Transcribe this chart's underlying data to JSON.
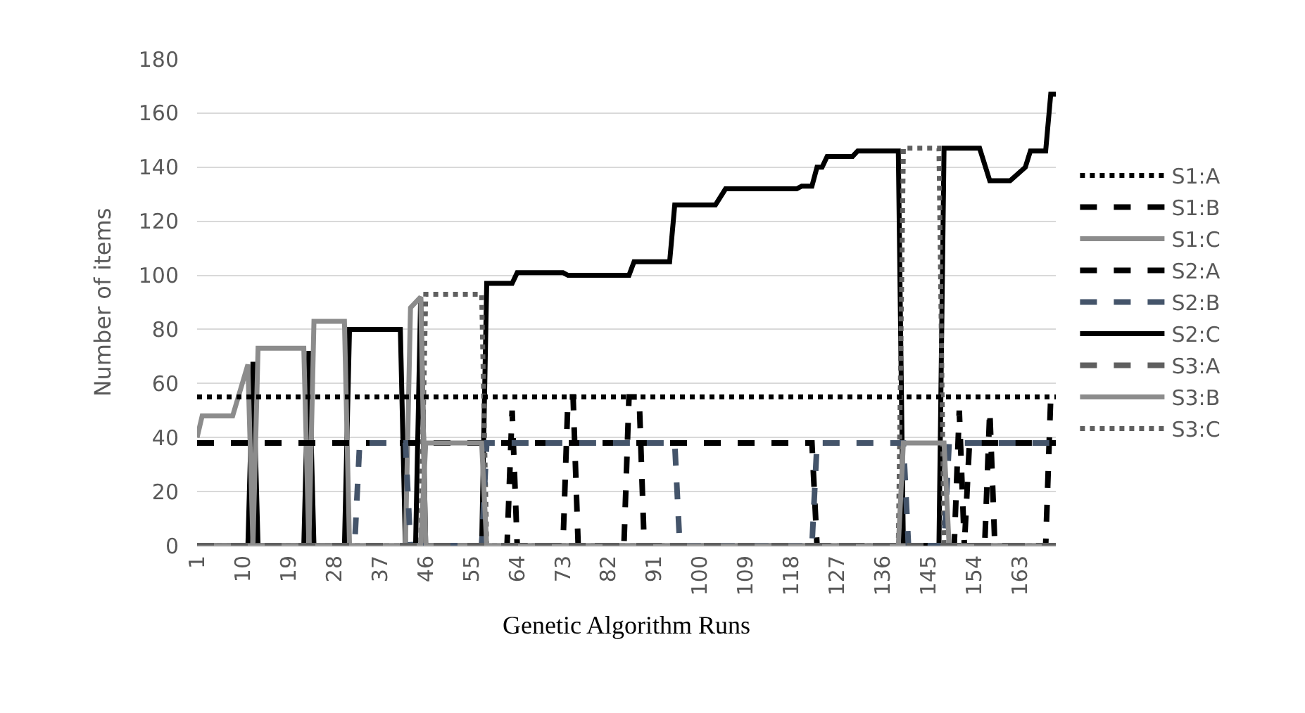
{
  "chart_data": {
    "type": "line",
    "xlabel": "Genetic Algorithm Runs",
    "ylabel": "Number of items",
    "xlim": [
      1,
      170
    ],
    "xticks": [
      1,
      10,
      19,
      28,
      37,
      46,
      55,
      64,
      73,
      82,
      91,
      100,
      109,
      118,
      127,
      136,
      145,
      154,
      163
    ],
    "ylim": [
      0,
      180
    ],
    "yticks": [
      0,
      20,
      40,
      60,
      80,
      100,
      120,
      140,
      160,
      180
    ],
    "grid": "y",
    "legend": "right",
    "marker": "none",
    "series": [
      {
        "name": "S1:A",
        "color": "#000000",
        "line_style": "dotted",
        "x": [
          1,
          170
        ],
        "values": [
          55,
          55
        ]
      },
      {
        "name": "S1:B",
        "color": "#000000",
        "line_style": "dashed",
        "x": [
          1,
          122,
          123,
          152,
          153,
          170
        ],
        "values": [
          38,
          38,
          0,
          0,
          38,
          38
        ]
      },
      {
        "name": "S1:C",
        "color": "#8c8c8c",
        "line_style": "solid",
        "x": [
          1,
          2,
          8,
          11,
          12,
          13,
          22,
          23,
          24,
          30,
          31,
          42,
          43,
          45,
          46,
          170
        ],
        "values": [
          40,
          48,
          48,
          67,
          0,
          73,
          73,
          0,
          83,
          83,
          0,
          0,
          88,
          92,
          0,
          0
        ]
      },
      {
        "name": "S2:A",
        "color": "#000000",
        "line_style": "dashed",
        "x": [
          1,
          62,
          63,
          64,
          73,
          74,
          75,
          76,
          85,
          86,
          88,
          89,
          150,
          151,
          152,
          156,
          157,
          158,
          168,
          169,
          170
        ],
        "values": [
          0,
          0,
          50,
          0,
          0,
          55,
          55,
          0,
          0,
          55,
          55,
          0,
          0,
          50,
          0,
          0,
          50,
          0,
          0,
          55,
          55
        ]
      },
      {
        "name": "S2:B",
        "color": "#44546a",
        "line_style": "dashed",
        "x": [
          1,
          32,
          33,
          42,
          43,
          57,
          58,
          95,
          96,
          122,
          123,
          140,
          141,
          148,
          149,
          170
        ],
        "values": [
          0,
          0,
          38,
          38,
          0,
          0,
          38,
          38,
          0,
          0,
          38,
          38,
          0,
          0,
          38,
          38
        ]
      },
      {
        "name": "S2:C",
        "color": "#000000",
        "line_style": "solid",
        "x": [
          1,
          11,
          12,
          13,
          22,
          23,
          24,
          30,
          31,
          41,
          42,
          44,
          45,
          46,
          57,
          58,
          63,
          64,
          73,
          74,
          86,
          87,
          94,
          95,
          103,
          105,
          119,
          120,
          122,
          123,
          124,
          125,
          130,
          131,
          139,
          140,
          147,
          148,
          155,
          157,
          161,
          164,
          165,
          168,
          169,
          170
        ],
        "values": [
          0,
          0,
          68,
          0,
          0,
          72,
          0,
          0,
          80,
          80,
          0,
          0,
          92,
          0,
          0,
          97,
          97,
          101,
          101,
          100,
          100,
          105,
          105,
          126,
          126,
          132,
          132,
          133,
          133,
          140,
          140,
          144,
          144,
          146,
          146,
          0,
          0,
          147,
          147,
          135,
          135,
          140,
          146,
          146,
          167,
          167
        ]
      },
      {
        "name": "S3:A",
        "color": "#5f5f5f",
        "line_style": "dashed",
        "x": [
          1,
          170
        ],
        "values": [
          0,
          0
        ]
      },
      {
        "name": "S3:B",
        "color": "#8c8c8c",
        "line_style": "solid",
        "x": [
          1,
          45,
          46,
          57,
          58,
          139,
          140,
          148,
          149,
          170
        ],
        "values": [
          0,
          0,
          38,
          38,
          0,
          0,
          38,
          38,
          0,
          0
        ]
      },
      {
        "name": "S3:C",
        "color": "#5f5f5f",
        "line_style": "dotted",
        "x": [
          1,
          45,
          46,
          57,
          58,
          139,
          140,
          147,
          148,
          170
        ],
        "values": [
          0,
          0,
          93,
          93,
          0,
          0,
          147,
          147,
          0,
          0
        ]
      }
    ]
  }
}
